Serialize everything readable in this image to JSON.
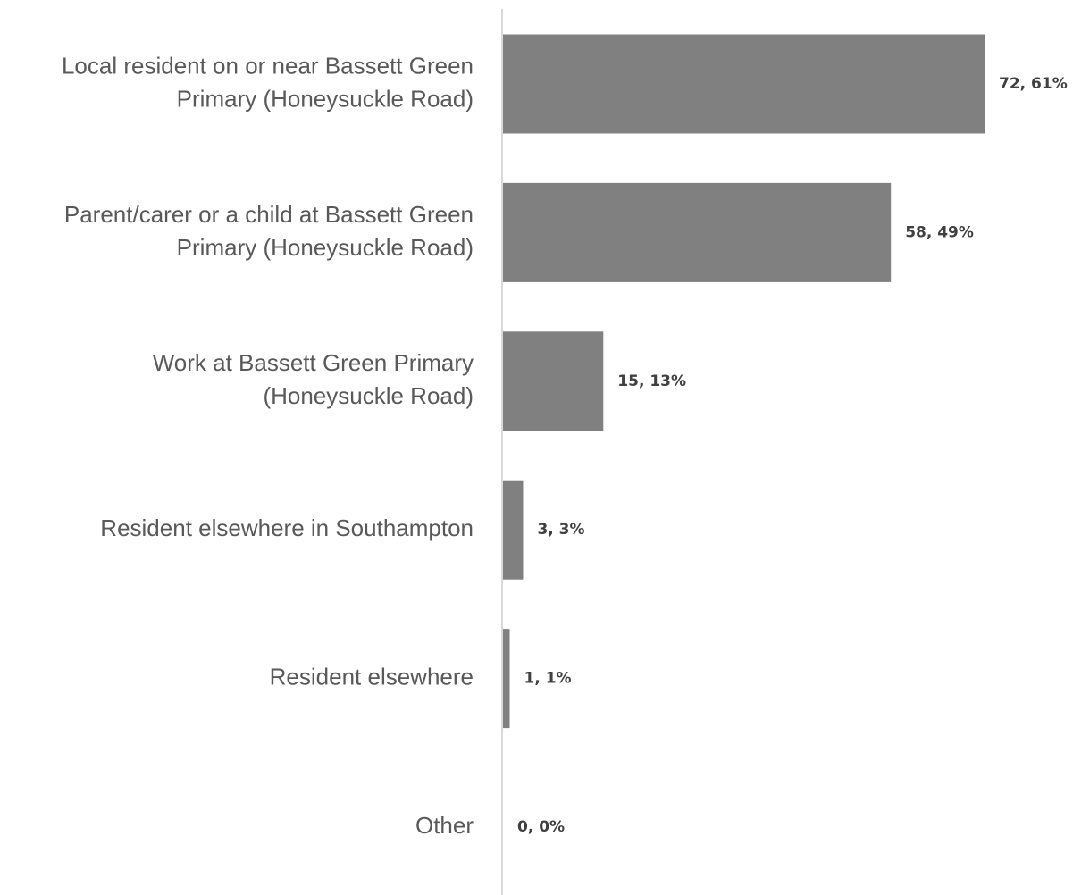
{
  "chart_data": {
    "type": "bar",
    "orientation": "horizontal",
    "categories": [
      [
        "Local resident on or near Bassett Green",
        "Primary (Honeysuckle Road)"
      ],
      [
        "Parent/carer or a child at Bassett Green",
        "Primary (Honeysuckle Road)"
      ],
      [
        "Work at Bassett Green Primary",
        "(Honeysuckle Road)"
      ],
      [
        "Resident elsewhere in Southampton"
      ],
      [
        "Resident elsewhere"
      ],
      [
        "Other"
      ]
    ],
    "values": [
      72,
      58,
      15,
      3,
      1,
      0
    ],
    "percents": [
      "61%",
      "49%",
      "13%",
      "3%",
      "1%",
      "0%"
    ],
    "data_labels": [
      "72, 61%",
      "58, 49%",
      "15, 13%",
      "3, 3%",
      "1, 1%",
      "0, 0%"
    ],
    "title": "",
    "xlabel": "",
    "ylabel": "",
    "xlim": [
      0,
      72
    ],
    "grid": false,
    "legend": "none",
    "bar_color": "#808080",
    "axis_color": "#d9d9d9"
  }
}
